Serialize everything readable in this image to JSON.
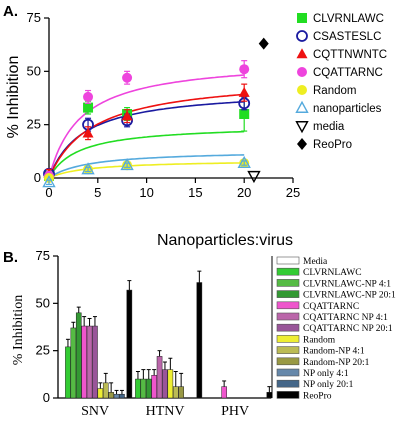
{
  "chart_data": [
    {
      "panel": "A.",
      "type": "scatter",
      "xlabel": "Nanoparticles:virus",
      "ylabel": "% Inhibition",
      "xlim": [
        0,
        25
      ],
      "ylim": [
        0,
        75
      ],
      "xticks": [
        "0",
        "5",
        "10",
        "15",
        "20",
        "25"
      ],
      "yticks": [
        "0",
        "25",
        "50",
        "75"
      ],
      "grid": false,
      "legend_position": "right",
      "series": [
        {
          "name": "CLVRNLAWC",
          "color": "#22dd22",
          "marker": "square-filled",
          "x": [
            0,
            4,
            8,
            20
          ],
          "y": [
            1,
            33,
            30,
            30
          ],
          "err": [
            2,
            3,
            3,
            8
          ],
          "fit": [
            25,
            3.0
          ]
        },
        {
          "name": "CSASTESLC",
          "color": "#1a1aa0",
          "marker": "circle-open",
          "x": [
            0,
            4,
            8,
            20
          ],
          "y": [
            2,
            25,
            27,
            35
          ],
          "err": [
            2,
            3,
            3,
            3
          ],
          "fit": [
            42,
            3.5
          ]
        },
        {
          "name": "CQTTNWNTC",
          "color": "#ee1111",
          "marker": "triangle-filled",
          "x": [
            0,
            4,
            8,
            20
          ],
          "y": [
            2,
            21,
            29,
            40
          ],
          "err": [
            2,
            3,
            3,
            4
          ],
          "fit": [
            48,
            4.5
          ]
        },
        {
          "name": "CQATTARNC",
          "color": "#ee44dd",
          "marker": "circle-filled",
          "x": [
            0,
            4,
            8,
            20
          ],
          "y": [
            1,
            38,
            47,
            51
          ],
          "err": [
            2,
            3,
            3,
            4
          ],
          "fit": [
            56,
            3.2
          ]
        },
        {
          "name": "Random",
          "color": "#eeee22",
          "marker": "circle-filled",
          "x": [
            0,
            4,
            8,
            20
          ],
          "y": [
            0,
            4,
            6,
            7
          ],
          "err": [
            1,
            1,
            1,
            1
          ],
          "fit": [
            8.5,
            4.0
          ]
        },
        {
          "name": "nanoparticles",
          "color": "#55aadd",
          "marker": "triangle-open",
          "x": [
            0,
            4,
            8,
            20
          ],
          "y": [
            -2,
            4,
            6,
            7
          ],
          "err": [
            1,
            1,
            1,
            1
          ],
          "fit": [
            13,
            4.0
          ]
        },
        {
          "name": "media",
          "color": "#000000",
          "marker": "triangle-down-open",
          "x": [
            21
          ],
          "y": [
            1
          ],
          "err": [
            0
          ],
          "fit": null
        },
        {
          "name": "ReoPro",
          "color": "#000000",
          "marker": "diamond-filled",
          "x": [
            22
          ],
          "y": [
            63
          ],
          "err": [
            0
          ],
          "fit": null
        }
      ]
    },
    {
      "panel": "B.",
      "type": "bar",
      "ylabel": "% Inhibition",
      "ylim": [
        0,
        75
      ],
      "yticks": [
        "0",
        "25",
        "50",
        "75"
      ],
      "categories": [
        "SNV",
        "HTNV",
        "PHV"
      ],
      "legend_position": "right",
      "series": [
        {
          "name": "Media",
          "color": "#ffffff",
          "values": [
            0,
            0,
            0
          ]
        },
        {
          "name": "CLVRNLAWC",
          "color": "#33cc33",
          "values": [
            27,
            10,
            0
          ]
        },
        {
          "name": "CLVRNLAWC-NP 4:1",
          "color": "#55bb44",
          "values": [
            37,
            10,
            0
          ]
        },
        {
          "name": "CLVRNLAWC-NP 20:1",
          "color": "#339933",
          "values": [
            45,
            10,
            0
          ]
        },
        {
          "name": "CQATTARNC",
          "color": "#ee55cc",
          "values": [
            38,
            12,
            6
          ]
        },
        {
          "name": "CQATTARNC NP 4:1",
          "color": "#bb66aa",
          "values": [
            38,
            22,
            0
          ]
        },
        {
          "name": "CQATTARNC NP 20:1",
          "color": "#995599",
          "values": [
            38,
            15,
            0
          ]
        },
        {
          "name": "Random",
          "color": "#eeee33",
          "values": [
            5,
            15,
            0
          ]
        },
        {
          "name": "Random-NP 4:1",
          "color": "#bbbb55",
          "values": [
            8,
            6,
            0
          ]
        },
        {
          "name": "Random-NP 20:1",
          "color": "#999944",
          "values": [
            3,
            6,
            0
          ]
        },
        {
          "name": "NP only 4:1",
          "color": "#6688aa",
          "values": [
            2,
            0,
            0
          ]
        },
        {
          "name": "NP only 20:1",
          "color": "#446688",
          "values": [
            2,
            0,
            0
          ]
        },
        {
          "name": "ReoPro",
          "color": "#000000",
          "values": [
            57,
            61,
            3
          ]
        }
      ],
      "errors": [
        [
          0,
          0,
          0
        ],
        [
          4,
          4,
          0
        ],
        [
          3,
          5,
          0
        ],
        [
          3,
          5,
          0
        ],
        [
          5,
          3,
          3
        ],
        [
          4,
          3,
          0
        ],
        [
          5,
          4,
          0
        ],
        [
          3,
          6,
          0
        ],
        [
          5,
          8,
          0
        ],
        [
          5,
          7,
          0
        ],
        [
          2,
          0,
          0
        ],
        [
          2,
          0,
          0
        ],
        [
          5,
          6,
          3
        ]
      ]
    }
  ]
}
